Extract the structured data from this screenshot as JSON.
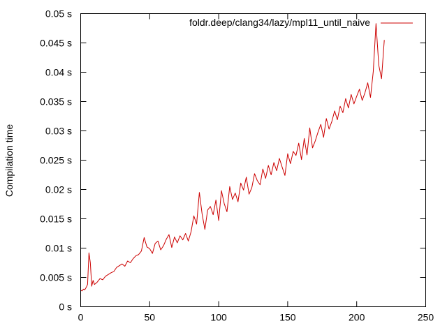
{
  "chart_data": {
    "type": "line",
    "title": "",
    "xlabel": "",
    "ylabel": "Compilation time",
    "xlim": [
      0,
      250
    ],
    "ylim": [
      0,
      0.05
    ],
    "grid": false,
    "legend_position": "top-right",
    "x_ticks": [
      {
        "value": 0,
        "label": "0"
      },
      {
        "value": 50,
        "label": "50"
      },
      {
        "value": 100,
        "label": "100"
      },
      {
        "value": 150,
        "label": "150"
      },
      {
        "value": 200,
        "label": "200"
      },
      {
        "value": 250,
        "label": "250"
      }
    ],
    "y_ticks": [
      {
        "value": 0,
        "label": "0 s"
      },
      {
        "value": 0.005,
        "label": "0.005 s"
      },
      {
        "value": 0.01,
        "label": "0.01 s"
      },
      {
        "value": 0.015,
        "label": "0.015 s"
      },
      {
        "value": 0.02,
        "label": "0.02 s"
      },
      {
        "value": 0.025,
        "label": "0.025 s"
      },
      {
        "value": 0.03,
        "label": "0.03 s"
      },
      {
        "value": 0.035,
        "label": "0.035 s"
      },
      {
        "value": 0.04,
        "label": "0.04 s"
      },
      {
        "value": 0.045,
        "label": "0.045 s"
      },
      {
        "value": 0.05,
        "label": "0.05 s"
      }
    ],
    "series": [
      {
        "name": "foldr.deep/clang34/lazy/mpl11_until_naive",
        "color": "#cc0000",
        "x": [
          0,
          1,
          2,
          3,
          4,
          5,
          6,
          7,
          8,
          9,
          10,
          12,
          14,
          16,
          18,
          20,
          22,
          24,
          26,
          28,
          30,
          32,
          34,
          36,
          38,
          40,
          42,
          44,
          46,
          48,
          50,
          52,
          54,
          56,
          58,
          60,
          62,
          64,
          66,
          68,
          70,
          72,
          74,
          76,
          78,
          80,
          82,
          84,
          86,
          88,
          90,
          92,
          94,
          96,
          98,
          100,
          102,
          104,
          106,
          108,
          110,
          112,
          114,
          116,
          118,
          120,
          122,
          124,
          126,
          128,
          130,
          132,
          134,
          136,
          138,
          140,
          142,
          144,
          146,
          148,
          150,
          152,
          154,
          156,
          158,
          160,
          162,
          164,
          166,
          168,
          170,
          172,
          174,
          176,
          178,
          180,
          182,
          184,
          186,
          188,
          190,
          192,
          194,
          196,
          198,
          200,
          202,
          204,
          206,
          208,
          210,
          212,
          214,
          216,
          218,
          220
        ],
        "y": [
          0.0028,
          0.0027,
          0.003,
          0.0029,
          0.0033,
          0.0038,
          0.0092,
          0.0075,
          0.0035,
          0.0045,
          0.0038,
          0.0042,
          0.0048,
          0.0046,
          0.0052,
          0.0055,
          0.0058,
          0.006,
          0.0067,
          0.007,
          0.0073,
          0.0069,
          0.0078,
          0.0075,
          0.0082,
          0.0087,
          0.0089,
          0.0095,
          0.0118,
          0.0102,
          0.0099,
          0.0091,
          0.0108,
          0.0112,
          0.0097,
          0.0104,
          0.0115,
          0.0123,
          0.0101,
          0.0119,
          0.0109,
          0.0121,
          0.0114,
          0.0125,
          0.0112,
          0.0128,
          0.0155,
          0.0141,
          0.0195,
          0.0158,
          0.0132,
          0.0165,
          0.0171,
          0.0157,
          0.0182,
          0.0147,
          0.0198,
          0.0176,
          0.0162,
          0.0205,
          0.0183,
          0.0194,
          0.0179,
          0.0211,
          0.0199,
          0.0221,
          0.0192,
          0.0203,
          0.0227,
          0.0215,
          0.0208,
          0.0235,
          0.0219,
          0.0241,
          0.0225,
          0.0246,
          0.0232,
          0.0253,
          0.0238,
          0.0224,
          0.0261,
          0.0244,
          0.0265,
          0.0258,
          0.0279,
          0.0251,
          0.0287,
          0.0259,
          0.0305,
          0.0271,
          0.0283,
          0.0298,
          0.0311,
          0.0289,
          0.0321,
          0.0303,
          0.0316,
          0.0334,
          0.0319,
          0.0342,
          0.0331,
          0.0355,
          0.0339,
          0.0362,
          0.0346,
          0.0359,
          0.0371,
          0.0352,
          0.0365,
          0.0382,
          0.0357,
          0.0401,
          0.0483,
          0.0412,
          0.0389,
          0.0455
        ]
      }
    ]
  }
}
